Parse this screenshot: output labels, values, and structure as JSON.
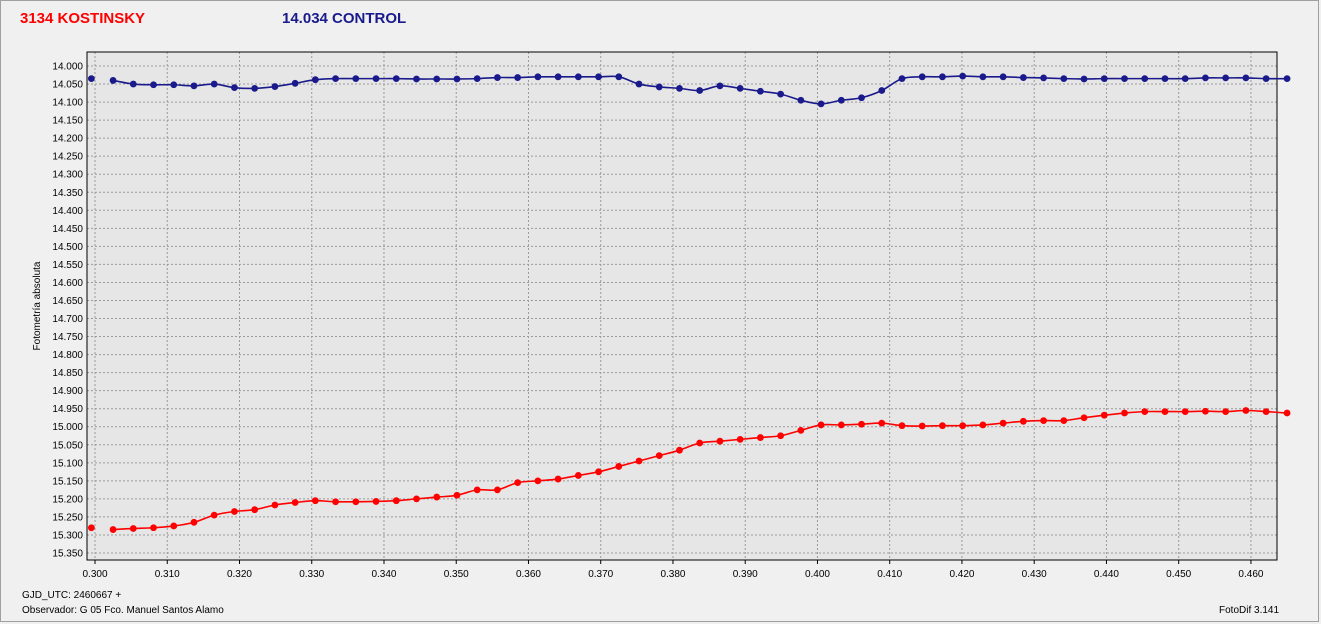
{
  "header": {
    "variable_title": "3134 KOSTINSKY",
    "control_title": "14.034 CONTROL"
  },
  "footer": {
    "gjd": "GJD_UTC: 2460667 +",
    "observer": "Observador: G 05  Fco. Manuel Santos Alamo",
    "software": "FotoDif 3.141"
  },
  "colors": {
    "variable": "#ff0000",
    "control": "#1a1a8c",
    "plot_bg": "#e6e6e6",
    "grid": "#9a9a9a"
  },
  "chart_data": {
    "type": "line",
    "ylabel": "Fotometría absoluta",
    "xlim": [
      0.2995,
      0.465
    ],
    "ylim": [
      14.0,
      15.35
    ],
    "y_inverted": true,
    "grid": true,
    "x_ticks": [
      "0.300",
      "0.310",
      "0.320",
      "0.330",
      "0.340",
      "0.350",
      "0.360",
      "0.370",
      "0.380",
      "0.390",
      "0.400",
      "0.410",
      "0.420",
      "0.430",
      "0.440",
      "0.450",
      "0.460"
    ],
    "y_ticks": [
      "14.000",
      "14.050",
      "14.100",
      "14.150",
      "14.200",
      "14.250",
      "14.300",
      "14.350",
      "14.400",
      "14.450",
      "14.500",
      "14.550",
      "14.600",
      "14.650",
      "14.700",
      "14.750",
      "14.800",
      "14.850",
      "14.900",
      "14.950",
      "15.000",
      "15.050",
      "15.100",
      "15.150",
      "15.200",
      "15.250",
      "15.300",
      "15.350"
    ],
    "series": [
      {
        "name": "3134 KOSTINSKY",
        "color": "#ff0000",
        "x": [
          0.2995,
          0.3025,
          0.3053,
          0.3081,
          0.3109,
          0.3137,
          0.3165,
          0.3193,
          0.3221,
          0.3249,
          0.3277,
          0.3305,
          0.3333,
          0.3361,
          0.3389,
          0.3417,
          0.3445,
          0.3473,
          0.3501,
          0.3529,
          0.3557,
          0.3585,
          0.3613,
          0.3641,
          0.3669,
          0.3697,
          0.3725,
          0.3753,
          0.3781,
          0.3809,
          0.3837,
          0.3865,
          0.3893,
          0.3921,
          0.3949,
          0.3977,
          0.4005,
          0.4033,
          0.4061,
          0.4089,
          0.4117,
          0.4145,
          0.4173,
          0.4201,
          0.4229,
          0.4257,
          0.4285,
          0.4313,
          0.4341,
          0.4369,
          0.4397,
          0.4425,
          0.4453,
          0.4481,
          0.4509,
          0.4537,
          0.4565,
          0.4593,
          0.4621,
          0.465
        ],
        "values": [
          15.28,
          15.285,
          15.282,
          15.28,
          15.275,
          15.265,
          15.245,
          15.235,
          15.23,
          15.217,
          15.21,
          15.205,
          15.208,
          15.208,
          15.207,
          15.205,
          15.2,
          15.195,
          15.19,
          15.175,
          15.175,
          15.155,
          15.15,
          15.145,
          15.135,
          15.125,
          15.11,
          15.095,
          15.08,
          15.065,
          15.045,
          15.04,
          15.035,
          15.03,
          15.025,
          15.01,
          14.995,
          14.995,
          14.993,
          14.99,
          14.997,
          14.998,
          14.997,
          14.997,
          14.995,
          14.99,
          14.985,
          14.983,
          14.983,
          14.975,
          14.968,
          14.962,
          14.958,
          14.958,
          14.958,
          14.957,
          14.958,
          14.955,
          14.958,
          14.962
        ]
      },
      {
        "name": "14.034 CONTROL",
        "color": "#1a1a8c",
        "x": [
          0.2995,
          0.3025,
          0.3053,
          0.3081,
          0.3109,
          0.3137,
          0.3165,
          0.3193,
          0.3221,
          0.3249,
          0.3277,
          0.3305,
          0.3333,
          0.3361,
          0.3389,
          0.3417,
          0.3445,
          0.3473,
          0.3501,
          0.3529,
          0.3557,
          0.3585,
          0.3613,
          0.3641,
          0.3669,
          0.3697,
          0.3725,
          0.3753,
          0.3781,
          0.3809,
          0.3837,
          0.3865,
          0.3893,
          0.3921,
          0.3949,
          0.3977,
          0.4005,
          0.4033,
          0.4061,
          0.4089,
          0.4117,
          0.4145,
          0.4173,
          0.4201,
          0.4229,
          0.4257,
          0.4285,
          0.4313,
          0.4341,
          0.4369,
          0.4397,
          0.4425,
          0.4453,
          0.4481,
          0.4509,
          0.4537,
          0.4565,
          0.4593,
          0.4621,
          0.465
        ],
        "values": [
          14.035,
          14.04,
          14.05,
          14.052,
          14.052,
          14.055,
          14.05,
          14.06,
          14.062,
          14.057,
          14.048,
          14.038,
          14.035,
          14.035,
          14.035,
          14.035,
          14.036,
          14.036,
          14.036,
          14.035,
          14.032,
          14.032,
          14.03,
          14.03,
          14.03,
          14.03,
          14.03,
          14.05,
          14.058,
          14.062,
          14.068,
          14.055,
          14.062,
          14.07,
          14.078,
          14.095,
          14.105,
          14.095,
          14.088,
          14.068,
          14.035,
          14.03,
          14.03,
          14.028,
          14.03,
          14.03,
          14.032,
          14.033,
          14.035,
          14.036,
          14.035,
          14.035,
          14.035,
          14.035,
          14.035,
          14.033,
          14.033,
          14.033,
          14.035,
          14.035
        ]
      }
    ]
  }
}
